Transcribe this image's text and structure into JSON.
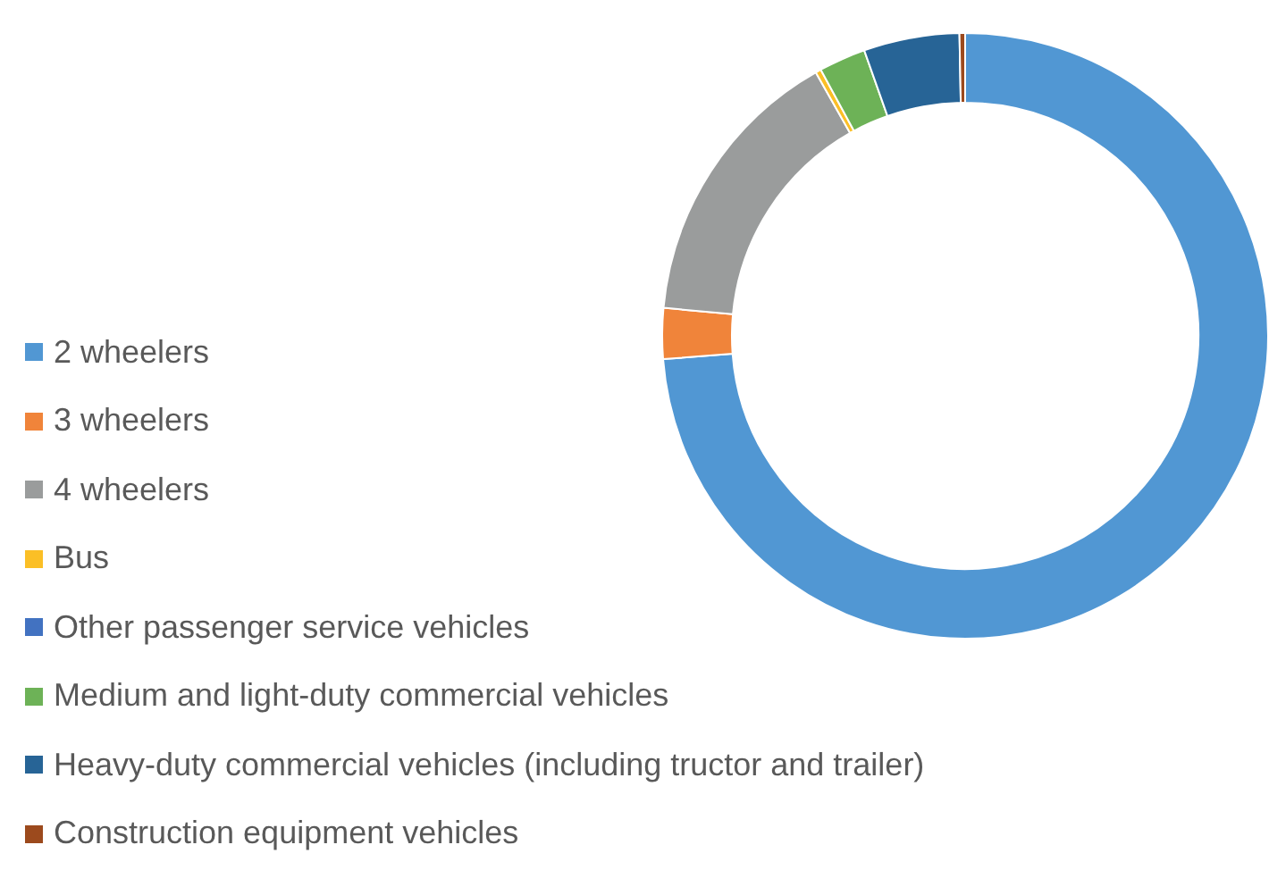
{
  "chart_data": {
    "type": "donut",
    "categories": [
      "2 wheelers",
      "3 wheelers",
      "4 wheelers",
      "Bus",
      "Other passenger service vehicles",
      "Medium and light-duty commercial vehicles",
      "Heavy-duty commercial vehicles (including tructor and trailer)",
      "Construction equipment vehicles"
    ],
    "values": [
      73.7,
      2.7,
      15.3,
      0.3,
      null,
      2.5,
      5.1,
      0.3
    ],
    "colors": [
      "#5197d3",
      "#f0843a",
      "#9a9c9c",
      "#fbbf26",
      "#4272c1",
      "#6db257",
      "#276496",
      "#9c4a1d"
    ],
    "legend": "left"
  }
}
